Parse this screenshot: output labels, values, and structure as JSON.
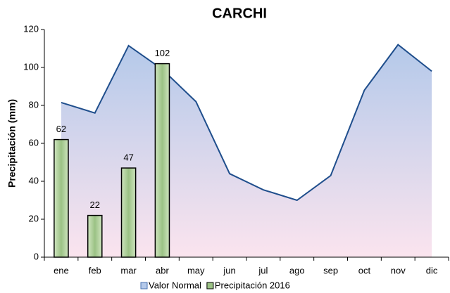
{
  "chart_data": {
    "type": "bar+area",
    "title": "CARCHI",
    "y_label": "Precipitación (mm)",
    "categories": [
      "ene",
      "feb",
      "mar",
      "abr",
      "may",
      "jun",
      "jul",
      "ago",
      "sep",
      "oct",
      "nov",
      "dic"
    ],
    "series": [
      {
        "name": "Valor Normal",
        "type": "area",
        "color": "#1f4e8c",
        "values": [
          81.5,
          76,
          111.5,
          99,
          82,
          44,
          35.5,
          30,
          43,
          88,
          112,
          98
        ]
      },
      {
        "name": "Precipitación 2016",
        "type": "bar",
        "color": "#9bc285",
        "values": [
          62,
          22,
          47,
          102,
          null,
          null,
          null,
          null,
          null,
          null,
          null,
          null
        ]
      }
    ],
    "ylim": [
      0,
      120
    ],
    "yticks": [
      0,
      20,
      40,
      60,
      80,
      100,
      120
    ],
    "legend": "bottom"
  }
}
